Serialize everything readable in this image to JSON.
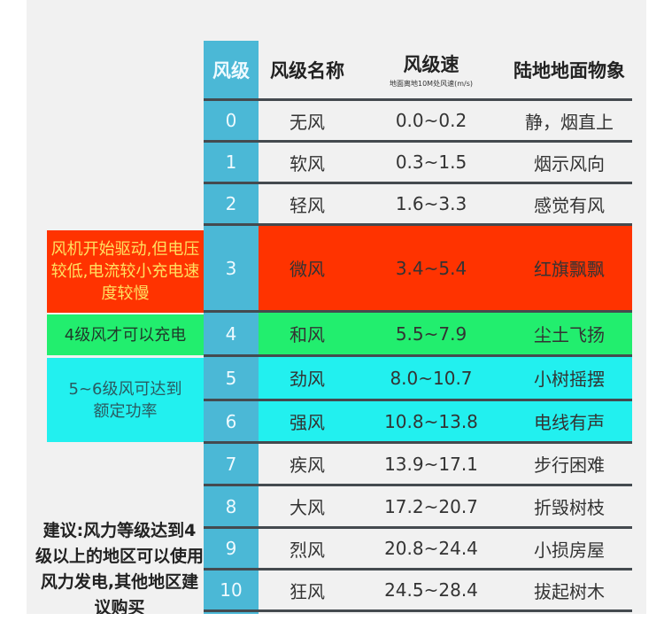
{
  "header": {
    "level": "风级",
    "name": "风级名称",
    "speed": "风级速",
    "speed_sub": "地面离地10M处风速(m/s)",
    "desc": "陆地地面物象"
  },
  "rows": [
    {
      "level": "0",
      "name": "无风",
      "speed": "0.0~0.2",
      "desc": "静，烟直上"
    },
    {
      "level": "1",
      "name": "软风",
      "speed": "0.3~1.5",
      "desc": "烟示风向"
    },
    {
      "level": "2",
      "name": "轻风",
      "speed": "1.6~3.3",
      "desc": "感觉有风"
    },
    {
      "level": "3",
      "name": "微风",
      "speed": "3.4~5.4",
      "desc": "红旗飘飘"
    },
    {
      "level": "4",
      "name": "和风",
      "speed": "5.5~7.9",
      "desc": "尘土飞扬"
    },
    {
      "level": "5",
      "name": "劲风",
      "speed": "8.0~10.7",
      "desc": "小树摇摆"
    },
    {
      "level": "6",
      "name": "强风",
      "speed": "10.8~13.8",
      "desc": "电线有声"
    },
    {
      "level": "7",
      "name": "疾风",
      "speed": "13.9~17.1",
      "desc": "步行困难"
    },
    {
      "level": "8",
      "name": "大风",
      "speed": "17.2~20.7",
      "desc": "折毁树枝"
    },
    {
      "level": "9",
      "name": "烈风",
      "speed": "20.8~24.4",
      "desc": "小损房屋"
    },
    {
      "level": "10",
      "name": "狂风",
      "speed": "24.5~28.4",
      "desc": "拔起树木"
    }
  ],
  "notes": {
    "red": "风机开始驱动,但电压较低,电流较小充电速度较慢",
    "green": "4级风才可以充电",
    "cyan": "5~6级风可达到额定功率"
  },
  "advice": "建议:风力等级达到4级以上的地区可以使用风力发电,其他地区建议购买",
  "colors": {
    "red": "#ff3300",
    "green": "#22ee6e",
    "cyan": "#22f0ef",
    "blue": "#4bb8d6"
  }
}
